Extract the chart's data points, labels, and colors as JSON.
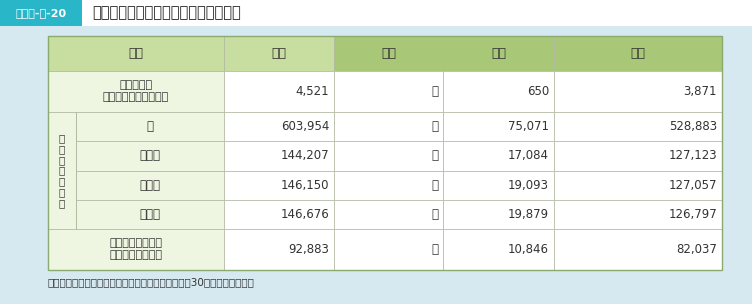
{
  "title_label": "図表２-４-20",
  "title_text": "幼保連携型認定こども園数及び園児数",
  "title_label_bg": "#29b6c8",
  "title_bar_bg": "#ffffff",
  "page_bg": "#d6e8f0",
  "header_bg_light": "#c8dda0",
  "header_bg_dark": "#a8c878",
  "row_bg": "#eef5e0",
  "cell_bg": "#ffffff",
  "border_color": "#b8c8a0",
  "source_text": "（出典）文部科学省「学校基本調査報告書」（平成30年５月１日現在）",
  "col_headers": [
    "区分",
    "合計",
    "国立",
    "公立",
    "私立"
  ],
  "row_data": [
    {
      "label": "幼保連携型\n認定こども園数（園）",
      "values": [
        "4,521",
        "－",
        "650",
        "3,871"
      ],
      "type": "normal"
    },
    {
      "label": "計",
      "values": [
        "603,954",
        "－",
        "75,071",
        "528,883"
      ],
      "type": "span"
    },
    {
      "label": "３歳児",
      "values": [
        "144,207",
        "－",
        "17,084",
        "127,123"
      ],
      "type": "sub"
    },
    {
      "label": "４歳児",
      "values": [
        "146,150",
        "－",
        "19,093",
        "127,057"
      ],
      "type": "sub"
    },
    {
      "label": "５歳児",
      "values": [
        "146,676",
        "－",
        "19,879",
        "126,797"
      ],
      "type": "sub"
    },
    {
      "label": "教員・保育教員数\n（本務者）（人）",
      "values": [
        "92,883",
        "－",
        "10,846",
        "82,037"
      ],
      "type": "normal"
    }
  ],
  "span_label": "在\n園\n児\n数\n（\n人\n）"
}
